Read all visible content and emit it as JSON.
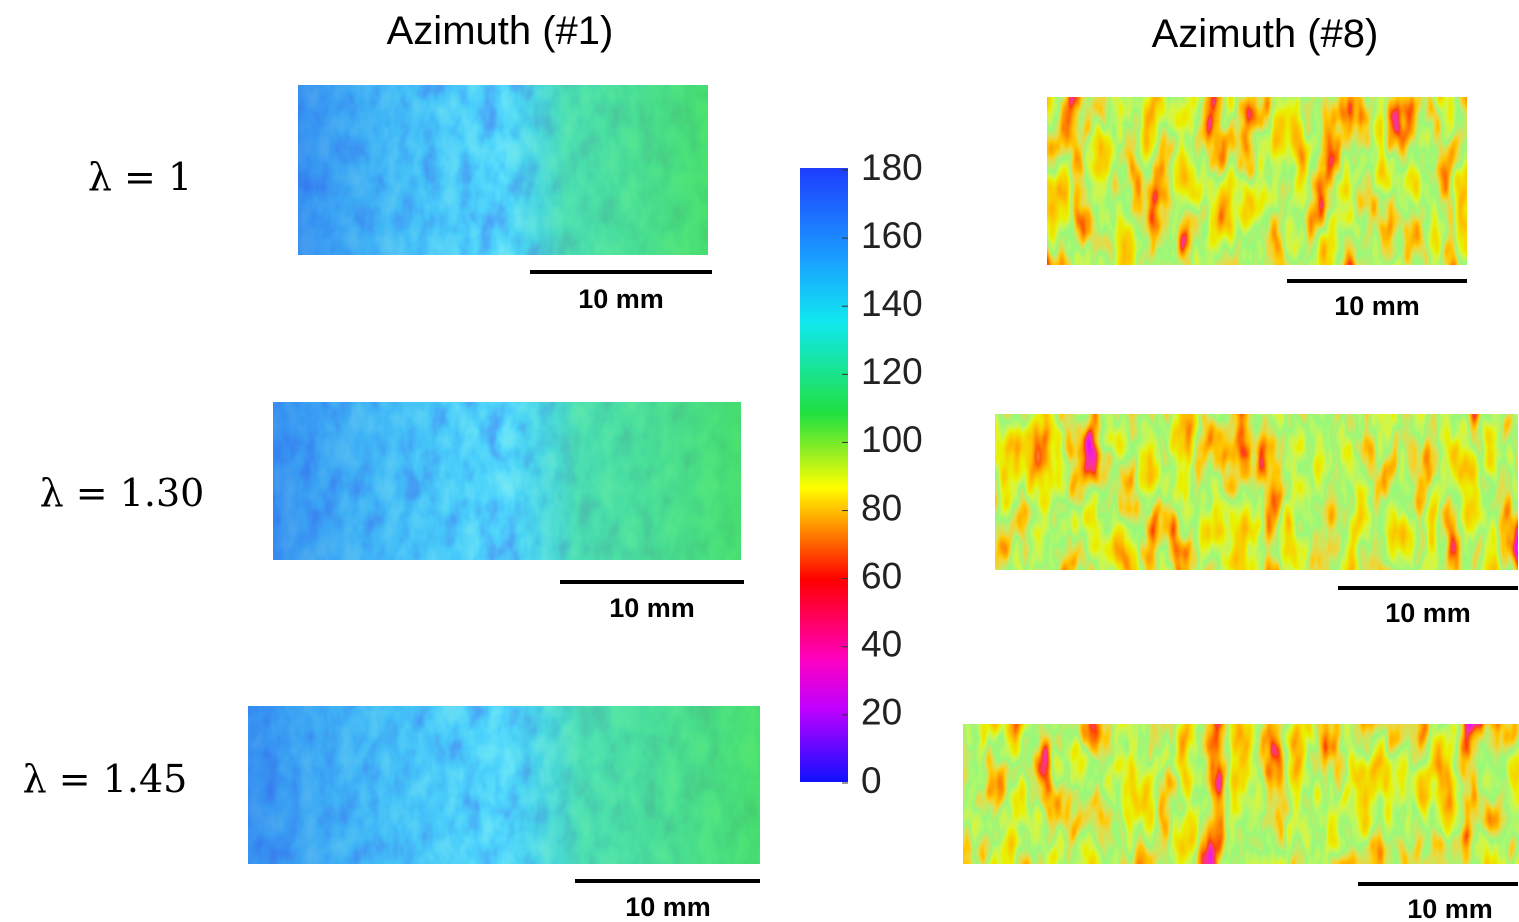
{
  "columns": [
    "Azimuth (#1)",
    "Azimuth (#8)"
  ],
  "rows": [
    "λ = 1",
    "λ = 1.30",
    "λ = 1.45"
  ],
  "scale_bars": [
    [
      "10 mm",
      "10 mm"
    ],
    [
      "10 mm",
      "10 mm"
    ],
    [
      "10 mm",
      "10 mm"
    ]
  ],
  "colorbar": {
    "ylim": [
      0,
      180
    ],
    "ticks": [
      0,
      20,
      40,
      60,
      80,
      100,
      120,
      140,
      160,
      180
    ]
  }
}
